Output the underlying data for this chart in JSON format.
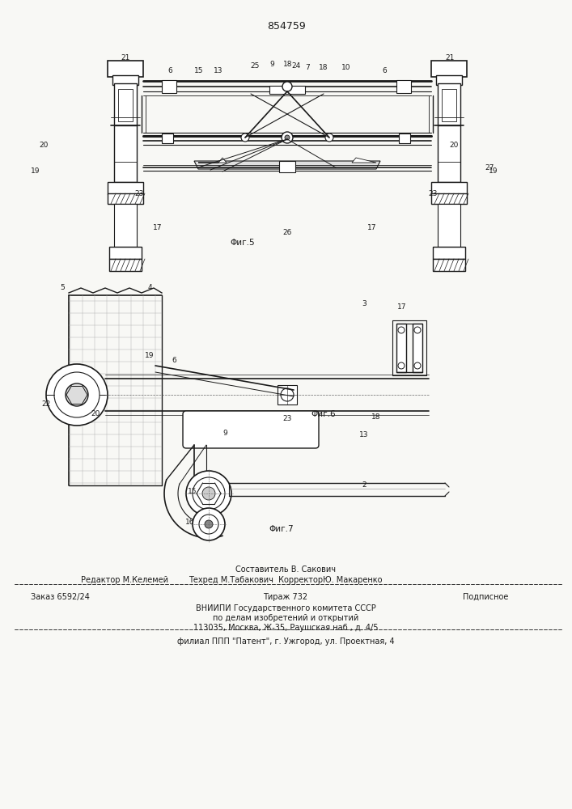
{
  "patent_number": "854759",
  "bg_color": "#f8f8f5",
  "line_color": "#1a1a1a",
  "fig5_label": "Φиг.5",
  "fig6_label": "Φиг.6",
  "fig7_label": "Φиг.7",
  "footer_composer": "Составитель В. Сакович",
  "footer_editor": "Редактор М.Келемей",
  "footer_tech": "Техред М.Табакович  КорректорЮ. Макаренко",
  "footer_order": "Заказ 6592/24",
  "footer_copies": "Тираж 732",
  "footer_sub": "Подписное",
  "footer_org1": "ВНИИПИ Государственного комитета СССР",
  "footer_org2": "по делам изобретений и открытий",
  "footer_org3": "113035, Москва, Ж-35, Раушская наб., д. 4/5",
  "footer_branch": "филиал ППП \"Патент\", г. Ужгород, ул. Проектная, 4"
}
